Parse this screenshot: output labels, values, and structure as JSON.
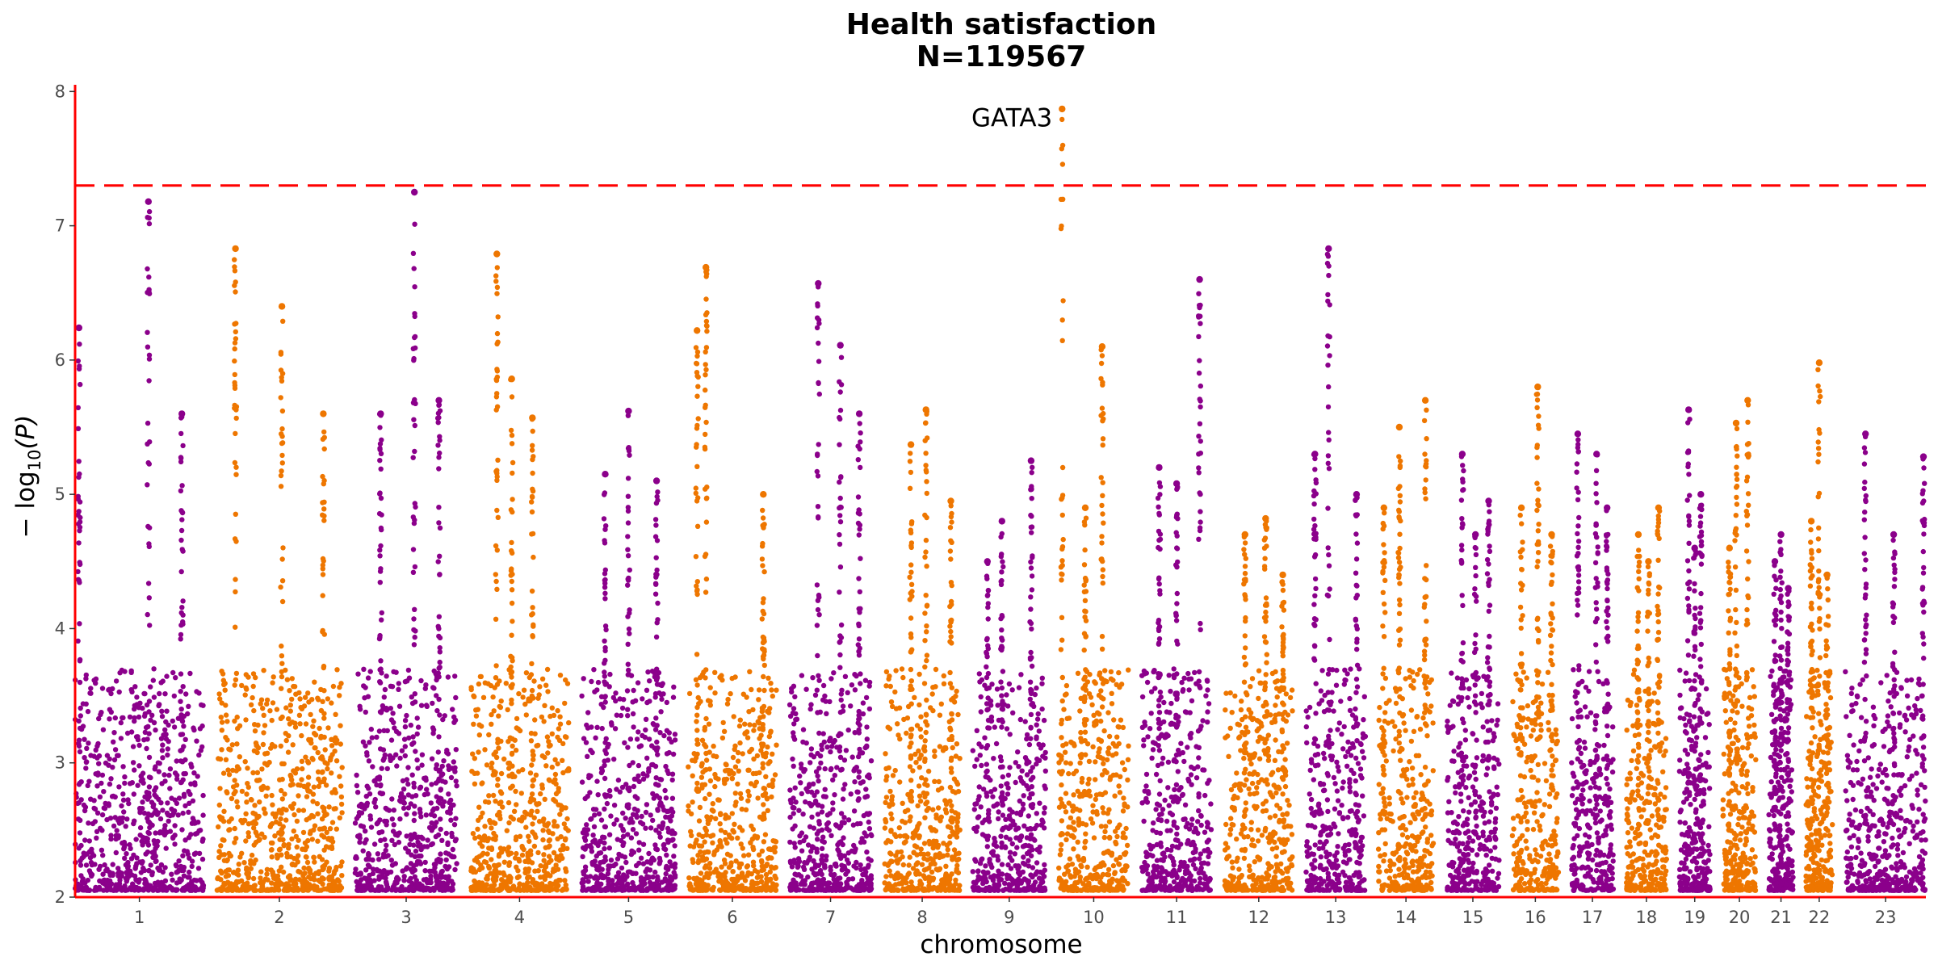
{
  "chart_data": {
    "type": "scatter",
    "title": "Health satisfaction",
    "subtitle": "N=119567",
    "xlabel": "chromosome",
    "ylabel_main": "− log",
    "ylabel_sub": "10",
    "ylabel_tail": "(P)",
    "ylim": [
      2,
      8.05
    ],
    "yticks": [
      "2",
      "3",
      "4",
      "5",
      "6",
      "7",
      "8"
    ],
    "threshold": 7.3,
    "grid": false,
    "legend": "none",
    "colors": {
      "odd": "#8B008B",
      "even": "#EE7600",
      "threshold": "#FF0000",
      "axis": "#FF0000"
    },
    "chromosomes": [
      {
        "label": "1",
        "size": 249,
        "peaks": [
          [
            0.57,
            7.18
          ],
          [
            0.03,
            6.24
          ],
          [
            0.83,
            5.6
          ]
        ]
      },
      {
        "label": "2",
        "size": 243,
        "peaks": [
          [
            0.15,
            6.83
          ],
          [
            0.52,
            6.4
          ],
          [
            0.85,
            5.6
          ]
        ]
      },
      {
        "label": "3",
        "size": 198,
        "peaks": [
          [
            0.58,
            7.25
          ],
          [
            0.25,
            5.6
          ],
          [
            0.82,
            5.7
          ]
        ]
      },
      {
        "label": "4",
        "size": 191,
        "peaks": [
          [
            0.27,
            6.79
          ],
          [
            0.42,
            5.86
          ],
          [
            0.63,
            5.57
          ]
        ]
      },
      {
        "label": "5",
        "size": 181,
        "peaks": [
          [
            0.5,
            5.62
          ],
          [
            0.25,
            5.15
          ],
          [
            0.8,
            5.1
          ]
        ]
      },
      {
        "label": "6",
        "size": 171,
        "peaks": [
          [
            0.2,
            6.69
          ],
          [
            0.1,
            6.22
          ],
          [
            0.85,
            5.0
          ]
        ]
      },
      {
        "label": "7",
        "size": 159,
        "peaks": [
          [
            0.35,
            6.57
          ],
          [
            0.62,
            6.11
          ],
          [
            0.85,
            5.6
          ]
        ]
      },
      {
        "label": "8",
        "size": 146,
        "peaks": [
          [
            0.55,
            5.63
          ],
          [
            0.35,
            5.37
          ],
          [
            0.88,
            4.95
          ]
        ]
      },
      {
        "label": "9",
        "size": 141,
        "peaks": [
          [
            0.8,
            5.25
          ],
          [
            0.4,
            4.8
          ],
          [
            0.2,
            4.5
          ]
        ]
      },
      {
        "label": "10",
        "size": 136,
        "peaks": [
          [
            0.05,
            7.87
          ],
          [
            0.62,
            6.1
          ],
          [
            0.38,
            4.9
          ]
        ]
      },
      {
        "label": "11",
        "size": 135,
        "peaks": [
          [
            0.83,
            6.6
          ],
          [
            0.25,
            5.2
          ],
          [
            0.5,
            5.08
          ]
        ]
      },
      {
        "label": "12",
        "size": 133,
        "peaks": [
          [
            0.6,
            4.82
          ],
          [
            0.3,
            4.7
          ],
          [
            0.85,
            4.4
          ]
        ]
      },
      {
        "label": "13",
        "size": 115,
        "peaks": [
          [
            0.38,
            6.83
          ],
          [
            0.15,
            5.3
          ],
          [
            0.85,
            5.0
          ]
        ]
      },
      {
        "label": "14",
        "size": 107,
        "peaks": [
          [
            0.38,
            5.5
          ],
          [
            0.85,
            5.7
          ],
          [
            0.1,
            4.9
          ]
        ]
      },
      {
        "label": "15",
        "size": 102,
        "peaks": [
          [
            0.3,
            5.3
          ],
          [
            0.8,
            4.95
          ],
          [
            0.55,
            4.7
          ]
        ]
      },
      {
        "label": "16",
        "size": 90,
        "peaks": [
          [
            0.55,
            5.8
          ],
          [
            0.2,
            4.9
          ],
          [
            0.85,
            4.7
          ]
        ]
      },
      {
        "label": "17",
        "size": 81,
        "peaks": [
          [
            0.15,
            5.45
          ],
          [
            0.6,
            5.3
          ],
          [
            0.85,
            4.9
          ]
        ]
      },
      {
        "label": "18",
        "size": 78,
        "peaks": [
          [
            0.8,
            4.9
          ],
          [
            0.3,
            4.7
          ],
          [
            0.55,
            4.5
          ]
        ]
      },
      {
        "label": "19",
        "size": 59,
        "peaks": [
          [
            0.3,
            5.63
          ],
          [
            0.7,
            5.0
          ],
          [
            0.5,
            4.6
          ]
        ]
      },
      {
        "label": "20",
        "size": 64,
        "peaks": [
          [
            0.4,
            5.53
          ],
          [
            0.75,
            5.7
          ],
          [
            0.2,
            4.6
          ]
        ]
      },
      {
        "label": "21",
        "size": 47,
        "peaks": [
          [
            0.5,
            4.7
          ],
          [
            0.25,
            4.5
          ],
          [
            0.8,
            4.3
          ]
        ]
      },
      {
        "label": "22",
        "size": 51,
        "peaks": [
          [
            0.5,
            5.98
          ],
          [
            0.2,
            4.8
          ],
          [
            0.8,
            4.4
          ]
        ]
      },
      {
        "label": "23",
        "size": 156,
        "peaks": [
          [
            0.25,
            5.45
          ],
          [
            0.97,
            5.28
          ],
          [
            0.6,
            4.7
          ]
        ]
      }
    ],
    "annotations": [
      {
        "text": "GATA3",
        "chromosome": "10",
        "y": 7.8
      }
    ]
  }
}
